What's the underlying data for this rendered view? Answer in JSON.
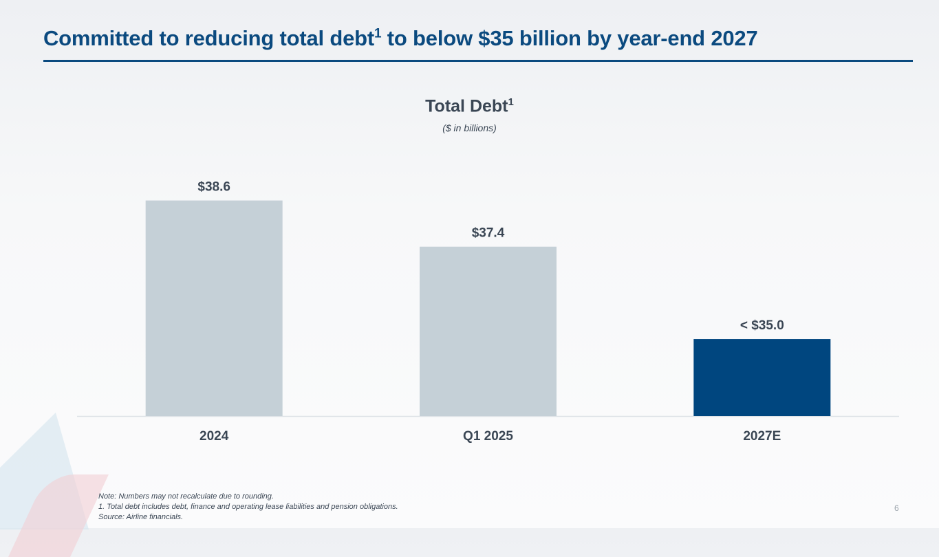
{
  "title": {
    "text": "Committed to reducing total debt",
    "sup": "1",
    "rest": " to below $35 billion by year-end 2027"
  },
  "chart_data": {
    "type": "bar",
    "title": "Total Debt",
    "title_sup": "1",
    "subtitle": "($ in billions)",
    "categories": [
      "2024",
      "Q1 2025",
      "2027E"
    ],
    "values": [
      38.6,
      37.4,
      35.0
    ],
    "data_labels": [
      "$38.6",
      "$37.4",
      "< $35.0"
    ],
    "colors": [
      "#c5d0d7",
      "#c5d0d7",
      "#00467f"
    ],
    "ylim": [
      33.0,
      39.7
    ],
    "grid": false,
    "baseline_color": "#dde2e6"
  },
  "notes": [
    "Note: Numbers may not recalculate due to rounding.",
    "1. Total debt includes debt, finance and operating lease liabilities and pension obligations.",
    "Source: Airline financials."
  ],
  "page_number": "6"
}
